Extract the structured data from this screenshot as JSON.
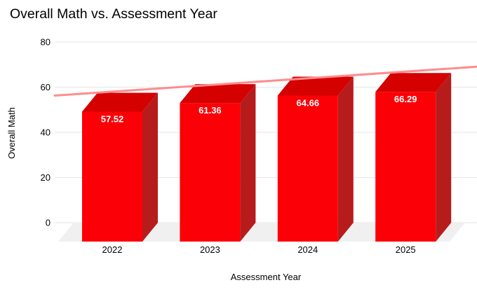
{
  "chart_data": {
    "type": "bar",
    "title": "Overall Math vs. Assessment Year",
    "categories": [
      "2022",
      "2023",
      "2024",
      "2025"
    ],
    "values": [
      57.52,
      61.36,
      64.66,
      66.29
    ],
    "value_labels": [
      "57.52",
      "61.36",
      "64.66",
      "66.29"
    ],
    "xlabel": "Assessment Year",
    "ylabel": "Overall Math",
    "ylim": [
      0,
      80
    ],
    "yticks": [
      0,
      20,
      40,
      60,
      80
    ],
    "grid": true,
    "legend_position": "none",
    "style_3d": true,
    "trendline": true,
    "colors": {
      "bar_front": "#fb0006",
      "bar_top": "#d50000",
      "bar_side": "#b71c1c",
      "trendline": "#ff8c8c",
      "gridline": "#e6e6e6",
      "floor": "#f0f0f0",
      "text": "#000000",
      "value_label": "#ffffff",
      "background": "#ffffff"
    }
  }
}
